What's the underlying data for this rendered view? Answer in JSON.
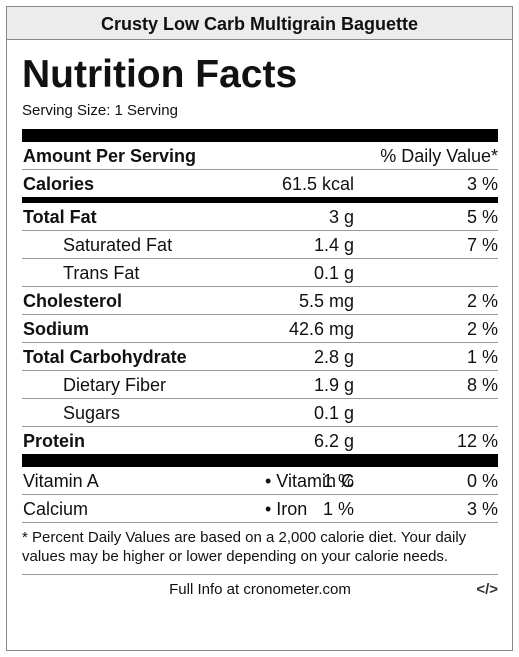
{
  "header": {
    "title": "Crusty Low Carb Multigrain Baguette"
  },
  "label": {
    "heading": "Nutrition Facts",
    "serving_size": "Serving Size: 1 Serving",
    "columns": {
      "left": "Amount Per Serving",
      "right": "% Daily Value*"
    },
    "calories": {
      "name": "Calories",
      "amount": "61.5 kcal",
      "dv": "3 %"
    },
    "nutrients": [
      {
        "name": "Total Fat",
        "amount": "3 g",
        "dv": "5 %"
      },
      {
        "name": "Saturated Fat",
        "amount": "1.4 g",
        "dv": "7 %"
      },
      {
        "name": "Trans Fat",
        "amount": "0.1 g"
      },
      {
        "name": "Cholesterol",
        "amount": "5.5 mg",
        "dv": "2 %"
      },
      {
        "name": "Sodium",
        "amount": "42.6 mg",
        "dv": "2 %"
      },
      {
        "name": "Total Carbohydrate",
        "amount": "2.8 g",
        "dv": "1 %"
      },
      {
        "name": "Dietary Fiber",
        "amount": "1.9 g",
        "dv": "8 %"
      },
      {
        "name": "Sugars",
        "amount": "0.1 g"
      },
      {
        "name": "Protein",
        "amount": "6.2 g",
        "dv": "12 %"
      }
    ],
    "vitamins": [
      {
        "name": "Vitamin A",
        "dv": "1 %",
        "name2": "• Vitamin C",
        "dv2": "0 %"
      },
      {
        "name": "Calcium",
        "dv": "1 %",
        "name2": "• Iron",
        "dv2": "3 %"
      }
    ],
    "footnote": "* Percent Daily Values are based on a 2,000 calorie diet. Your daily values may be higher or lower depending on your calorie needs."
  },
  "footer": {
    "link": "Full Info at cronometer.com",
    "embed": "</>"
  }
}
